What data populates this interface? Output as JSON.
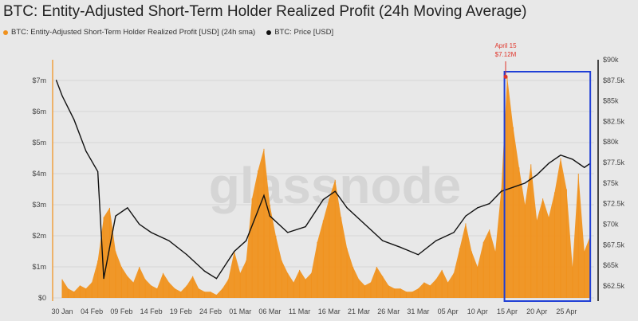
{
  "chart_data": {
    "type": "area",
    "title": "BTC: Entity-Adjusted Short-Term Holder Realized Profit (24h Moving Average)",
    "legend_position": "top-left",
    "grid": true,
    "watermark": "glassnode",
    "series": [
      {
        "name": "BTC: Entity-Adjusted Short-Term Holder Realized Profit [USD] (24h sma)",
        "axis": "left",
        "color": "#f0921e",
        "start": "2025-01-30",
        "values": [
          0.6,
          0.3,
          0.2,
          0.4,
          0.3,
          0.5,
          1.2,
          2.6,
          2.9,
          1.5,
          1.0,
          0.7,
          0.5,
          1.0,
          0.6,
          0.4,
          0.3,
          0.8,
          0.5,
          0.3,
          0.2,
          0.4,
          0.7,
          0.3,
          0.2,
          0.2,
          0.1,
          0.3,
          0.6,
          1.5,
          0.8,
          1.2,
          3.2,
          4.1,
          4.8,
          3.0,
          2.0,
          1.2,
          0.8,
          0.5,
          0.9,
          0.6,
          0.8,
          1.8,
          2.5,
          3.2,
          3.8,
          2.6,
          1.6,
          1.0,
          0.6,
          0.4,
          0.5,
          1.0,
          0.7,
          0.4,
          0.3,
          0.3,
          0.2,
          0.2,
          0.3,
          0.5,
          0.4,
          0.6,
          0.9,
          0.5,
          0.8,
          1.6,
          2.4,
          1.5,
          1.0,
          1.8,
          2.2,
          1.5,
          3.5,
          7.12,
          5.5,
          4.2,
          3.0,
          4.3,
          2.5,
          3.2,
          2.6,
          3.4,
          4.5,
          3.5,
          1.0,
          4.0,
          1.5,
          2.0
        ]
      },
      {
        "name": "BTC: Price [USD]",
        "axis": "right",
        "color": "#111111",
        "points": [
          [
            "2025-01-29",
            87.5
          ],
          [
            "2025-01-30",
            85.6
          ],
          [
            "2025-02-01",
            82.7
          ],
          [
            "2025-02-03",
            78.9
          ],
          [
            "2025-02-05",
            76.4
          ],
          [
            "2025-02-06",
            63.4
          ],
          [
            "2025-02-08",
            71.0
          ],
          [
            "2025-02-10",
            72.0
          ],
          [
            "2025-02-12",
            70.0
          ],
          [
            "2025-02-14",
            69.0
          ],
          [
            "2025-02-17",
            68.0
          ],
          [
            "2025-02-20",
            66.3
          ],
          [
            "2025-02-23",
            64.3
          ],
          [
            "2025-02-25",
            63.4
          ],
          [
            "2025-02-28",
            66.7
          ],
          [
            "2025-03-02",
            68.0
          ],
          [
            "2025-03-05",
            73.5
          ],
          [
            "2025-03-06",
            71.0
          ],
          [
            "2025-03-09",
            69.0
          ],
          [
            "2025-03-12",
            69.7
          ],
          [
            "2025-03-15",
            73.0
          ],
          [
            "2025-03-17",
            74.0
          ],
          [
            "2025-03-19",
            72.0
          ],
          [
            "2025-03-22",
            70.0
          ],
          [
            "2025-03-25",
            68.0
          ],
          [
            "2025-03-28",
            67.2
          ],
          [
            "2025-03-31",
            66.3
          ],
          [
            "2025-04-03",
            68.0
          ],
          [
            "2025-04-06",
            69.0
          ],
          [
            "2025-04-08",
            71.0
          ],
          [
            "2025-04-10",
            72.0
          ],
          [
            "2025-04-12",
            72.5
          ],
          [
            "2025-04-14",
            74.0
          ],
          [
            "2025-04-16",
            74.5
          ],
          [
            "2025-04-18",
            75.0
          ],
          [
            "2025-04-20",
            76.0
          ],
          [
            "2025-04-22",
            77.4
          ],
          [
            "2025-04-24",
            78.4
          ],
          [
            "2025-04-26",
            77.9
          ],
          [
            "2025-04-28",
            76.9
          ],
          [
            "2025-04-29",
            77.4
          ]
        ]
      }
    ],
    "left_axis": {
      "ylim": [
        0,
        7.7
      ],
      "ticks": [
        0,
        1,
        2,
        3,
        4,
        5,
        6,
        7
      ],
      "tick_labels": [
        "$0",
        "$1m",
        "$2m",
        "$3m",
        "$4m",
        "$5m",
        "$6m",
        "$7m"
      ]
    },
    "right_axis": {
      "ylim": [
        61.2,
        90
      ],
      "ticks": [
        62.5,
        65,
        67.5,
        70,
        72.5,
        75,
        77.5,
        80,
        82.5,
        85,
        87.5,
        90
      ],
      "tick_labels": [
        "$62.5k",
        "$65k",
        "$67.5k",
        "$70k",
        "$72.5k",
        "$75k",
        "$77.5k",
        "$80k",
        "$82.5k",
        "$85k",
        "$87.5k",
        "$90k"
      ]
    },
    "x_axis": {
      "tick_dates": [
        "2025-01-30",
        "2025-02-04",
        "2025-02-09",
        "2025-02-14",
        "2025-02-19",
        "2025-02-24",
        "2025-03-01",
        "2025-03-06",
        "2025-03-11",
        "2025-03-16",
        "2025-03-21",
        "2025-03-26",
        "2025-03-31",
        "2025-04-05",
        "2025-04-10",
        "2025-04-15",
        "2025-04-20",
        "2025-04-25"
      ],
      "tick_labels": [
        "30 Jan",
        "04 Feb",
        "09 Feb",
        "14 Feb",
        "19 Feb",
        "24 Feb",
        "01 Mar",
        "06 Mar",
        "11 Mar",
        "16 Mar",
        "21 Mar",
        "26 Mar",
        "31 Mar",
        "05 Apr",
        "10 Apr",
        "15 Apr",
        "20 Apr",
        "25 Apr"
      ]
    },
    "annotation": {
      "date": "2025-04-15",
      "line1": "April 15",
      "line2": "$7.12M",
      "color": "#e0352b"
    },
    "highlight": {
      "from": "2025-04-14",
      "to": "2025-04-29",
      "color": "#1f3fd6"
    }
  }
}
